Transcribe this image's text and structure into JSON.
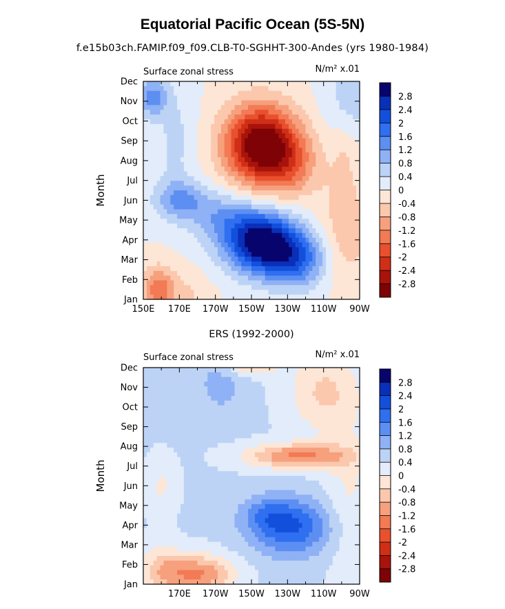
{
  "figure": {
    "title": "Equatorial Pacific Ocean (5S-5N)",
    "subtitle": "f.e15b03ch.FAMIP.f09_f09.CLB-T0-SGHHT-300-Andes (yrs 1980-1984)",
    "second_panel_title": "ERS (1992-2000)"
  },
  "colorbar": {
    "colors": [
      "#08046e",
      "#0a2fb8",
      "#1250dc",
      "#2f6ff0",
      "#5d8ff2",
      "#8fb1f5",
      "#bcd3f6",
      "#e2ecfa",
      "#fde6d6",
      "#fbc8ad",
      "#f6a07d",
      "#f27a55",
      "#e9502e",
      "#cf2f16",
      "#a8130b",
      "#7e0306"
    ],
    "tick_labels": [
      "2.8",
      "2.4",
      "2",
      "1.6",
      "1.2",
      "0.8",
      "0.4",
      "0",
      "-0.4",
      "-0.8",
      "-1.2",
      "-1.6",
      "-2",
      "-2.4",
      "-2.8"
    ]
  },
  "chart_data": [
    {
      "type": "heatmap",
      "title": "Surface zonal stress",
      "units": "N/m² x.01",
      "xlabel": "",
      "ylabel": "Month",
      "x_range": [
        150,
        270
      ],
      "x_ticks": [
        150,
        170,
        190,
        210,
        230,
        250,
        270
      ],
      "x_tick_labels": [
        "150E",
        "170E",
        "170W",
        "150W",
        "130W",
        "110W",
        "90W"
      ],
      "y_tick_labels": [
        "Jan",
        "Feb",
        "Mar",
        "Apr",
        "May",
        "Jun",
        "Jul",
        "Aug",
        "Sep",
        "Oct",
        "Nov",
        "Dec"
      ],
      "contour_levels": [
        -2.8,
        -2.4,
        -2,
        -1.6,
        -1.2,
        -0.8,
        -0.4,
        0,
        0.4,
        0.8,
        1.2,
        1.6,
        2,
        2.4,
        2.8
      ],
      "features": [
        {
          "x": 170,
          "y": 5,
          "sx": 10,
          "sy": 0.7,
          "value": 1.2
        },
        {
          "x": 215,
          "y": 2.9,
          "sx": 14,
          "sy": 1.1,
          "value": 3.2
        },
        {
          "x": 235,
          "y": 2.0,
          "sx": 12,
          "sy": 1.0,
          "value": 1.7
        },
        {
          "x": 192,
          "y": 4.2,
          "sx": 12,
          "sy": 0.9,
          "value": 0.9
        },
        {
          "x": 155,
          "y": 10.2,
          "sx": 6,
          "sy": 0.7,
          "value": 1.4
        },
        {
          "x": 265,
          "y": 10.0,
          "sx": 10,
          "sy": 2.0,
          "value": 0.6
        },
        {
          "x": 215,
          "y": 7.8,
          "sx": 14,
          "sy": 1.4,
          "value": -3.3
        },
        {
          "x": 232,
          "y": 6.8,
          "sx": 11,
          "sy": 1.2,
          "value": -1.0
        },
        {
          "x": 158,
          "y": 0.5,
          "sx": 6,
          "sy": 0.8,
          "value": -1.4
        },
        {
          "x": 172,
          "y": 0.0,
          "sx": 10,
          "sy": 1.0,
          "value": -0.5
        },
        {
          "x": 262,
          "y": 3.5,
          "sx": 10,
          "sy": 2.0,
          "value": -0.7
        },
        {
          "x": 168,
          "y": 8.0,
          "sx": 8,
          "sy": 2.0,
          "value": 0.5
        },
        {
          "x": 262,
          "y": 7.5,
          "sx": 6,
          "sy": 1.2,
          "value": -0.5
        }
      ]
    },
    {
      "type": "heatmap",
      "title": "Surface zonal stress",
      "units": "N/m² x.01",
      "xlabel": "",
      "ylabel": "Month",
      "x_range": [
        150,
        270
      ],
      "x_ticks": [
        170,
        190,
        210,
        230,
        250,
        270
      ],
      "x_tick_labels": [
        "170E",
        "170W",
        "150W",
        "130W",
        "110W",
        "90W"
      ],
      "y_tick_labels": [
        "Jan",
        "Feb",
        "Mar",
        "Apr",
        "May",
        "Jun",
        "Jul",
        "Aug",
        "Sep",
        "Oct",
        "Nov",
        "Dec"
      ],
      "contour_levels": [
        -2.8,
        -2.4,
        -2,
        -1.6,
        -1.2,
        -0.8,
        -0.4,
        0,
        0.4,
        0.8,
        1.2,
        1.6,
        2,
        2.4,
        2.8
      ],
      "features": [
        {
          "x": 0,
          "y": 0,
          "sx": 1,
          "sy": 1,
          "value": 0.0,
          "base": 0.45
        },
        {
          "x": 232,
          "y": 2.9,
          "sx": 16,
          "sy": 1.0,
          "value": 1.6
        },
        {
          "x": 218,
          "y": 3.6,
          "sx": 10,
          "sy": 0.6,
          "value": 0.6
        },
        {
          "x": 236,
          "y": 6.5,
          "sx": 20,
          "sy": 0.45,
          "value": -1.7
        },
        {
          "x": 180,
          "y": 0.5,
          "sx": 14,
          "sy": 0.7,
          "value": -1.7
        },
        {
          "x": 160,
          "y": 0.8,
          "sx": 8,
          "sy": 0.9,
          "value": -0.8
        },
        {
          "x": 250,
          "y": 9.8,
          "sx": 14,
          "sy": 1.5,
          "value": -0.9
        },
        {
          "x": 210,
          "y": 11.2,
          "sx": 10,
          "sy": 0.4,
          "value": -1.2
        },
        {
          "x": 264,
          "y": 4.5,
          "sx": 10,
          "sy": 3.0,
          "value": -0.5
        },
        {
          "x": 160,
          "y": 5.0,
          "sx": 6,
          "sy": 1.0,
          "value": -0.5
        },
        {
          "x": 193,
          "y": 10.2,
          "sx": 10,
          "sy": 1.2,
          "value": 0.5
        }
      ]
    }
  ]
}
